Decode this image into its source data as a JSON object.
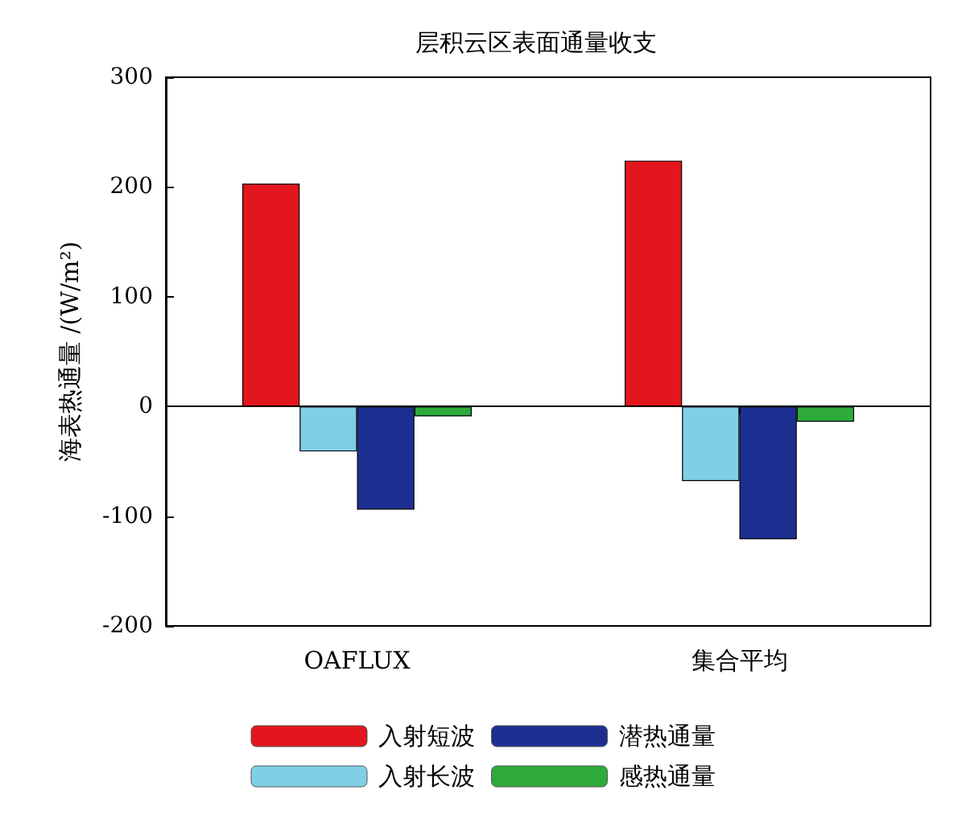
{
  "chart_data": {
    "type": "bar",
    "title": "层积云区表面通量收支",
    "ylabel": "海表热通量 /(W/m²)",
    "categories": [
      "OAFLUX",
      "集合平均"
    ],
    "series": [
      {
        "name": "入射短波",
        "color": "#e3161e",
        "values": [
          203,
          224
        ]
      },
      {
        "name": "入射长波",
        "color": "#7fd0e6",
        "values": [
          -41,
          -68
        ]
      },
      {
        "name": "潜热通量",
        "color": "#1c2f91",
        "values": [
          -94,
          -121
        ]
      },
      {
        "name": "感热通量",
        "color": "#2eaa3c",
        "values": [
          -9,
          -14
        ]
      }
    ],
    "ylim": [
      -200,
      300
    ],
    "yticks": [
      -200,
      -100,
      0,
      100,
      200,
      300
    ],
    "legend": "bottom"
  }
}
